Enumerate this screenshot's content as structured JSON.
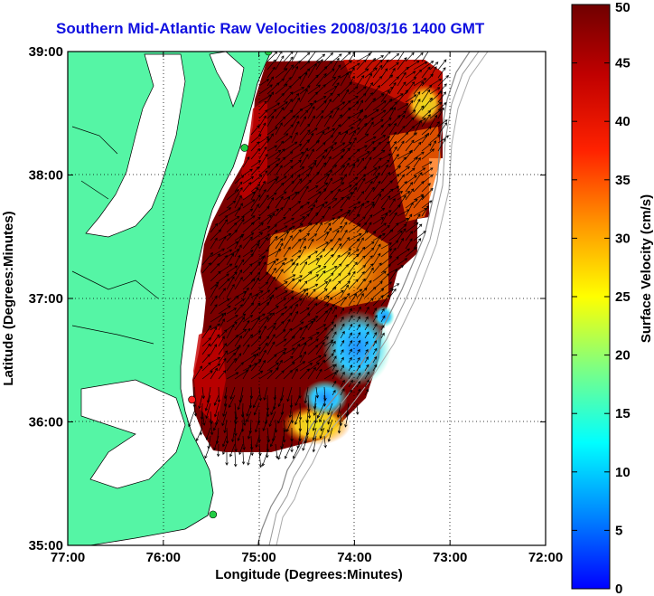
{
  "title": "Southern Mid-Atlantic Raw Velocities 2008/03/16 1400 GMT",
  "x_axis": {
    "label": "Longitude (Degrees:Minutes)",
    "ticks": [
      {
        "value": -77,
        "label": "77:00"
      },
      {
        "value": -76,
        "label": "76:00"
      },
      {
        "value": -75,
        "label": "75:00"
      },
      {
        "value": -74,
        "label": "74:00"
      },
      {
        "value": -73,
        "label": "73:00"
      },
      {
        "value": -72,
        "label": "72:00"
      }
    ],
    "range": [
      -77,
      -72
    ]
  },
  "y_axis": {
    "label": "Latitude (Degrees:Minutes)",
    "ticks": [
      {
        "value": 35,
        "label": "35:00"
      },
      {
        "value": 36,
        "label": "36:00"
      },
      {
        "value": 37,
        "label": "37:00"
      },
      {
        "value": 38,
        "label": "38:00"
      },
      {
        "value": 39,
        "label": "39:00"
      }
    ],
    "range": [
      35,
      39
    ]
  },
  "colorbar": {
    "label": "Surface Velocity (cm/s)",
    "ticks": [
      "0",
      "5",
      "10",
      "15",
      "20",
      "25",
      "30",
      "35",
      "40",
      "45",
      "50"
    ],
    "range": [
      0,
      50
    ],
    "colormap": "jet"
  },
  "map": {
    "land_color": "#55f5a5",
    "water_color": "#ffffff",
    "grid": "dotted",
    "stations": [
      {
        "lon": -74.9,
        "lat": 39.0,
        "color": "#22cc44"
      },
      {
        "lon": -75.15,
        "lat": 38.22,
        "color": "#22cc44"
      },
      {
        "lon": -75.7,
        "lat": 36.18,
        "color": "#ff2222"
      },
      {
        "lon": -75.48,
        "lat": 35.25,
        "color": "#22cc44"
      }
    ]
  }
}
